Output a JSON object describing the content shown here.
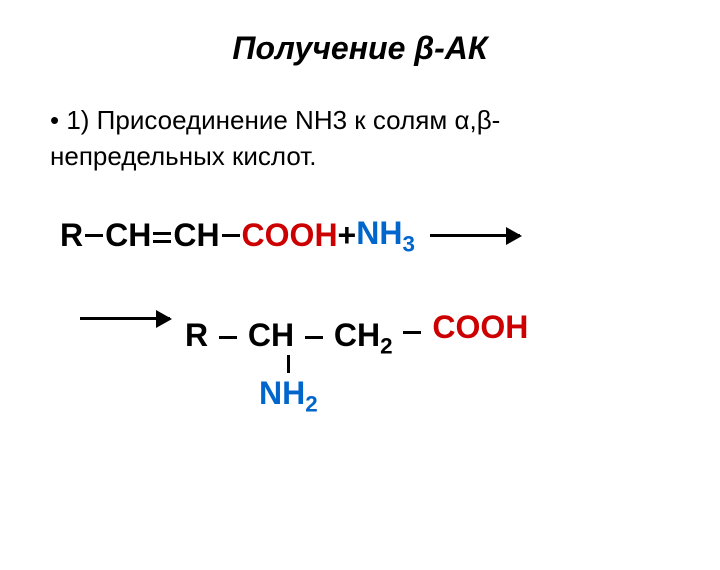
{
  "title": {
    "prefix": "Получение ",
    "beta": "β",
    "suffix": "-АК"
  },
  "bullet": {
    "prefix": "1) Присоединение NH3 к солям ",
    "alpha": "α",
    "comma": ",",
    "beta": "β",
    "suffix": "-непредельных кислот."
  },
  "reaction": {
    "reactant": {
      "R": "R",
      "CH1": "CH",
      "CH2": "CH",
      "COOH": "COOH",
      "plus": " +",
      "NH3": "NH",
      "NH3_sub": "3"
    },
    "product": {
      "R": "R",
      "CH": "CH",
      "CH2": "CH",
      "CH2_sub": "2",
      "COOH": "COOH",
      "NH2": "NH",
      "NH2_sub": "2"
    }
  },
  "colors": {
    "black": "#000000",
    "red": "#cc0000",
    "blue": "#0066cc",
    "background": "#ffffff"
  }
}
